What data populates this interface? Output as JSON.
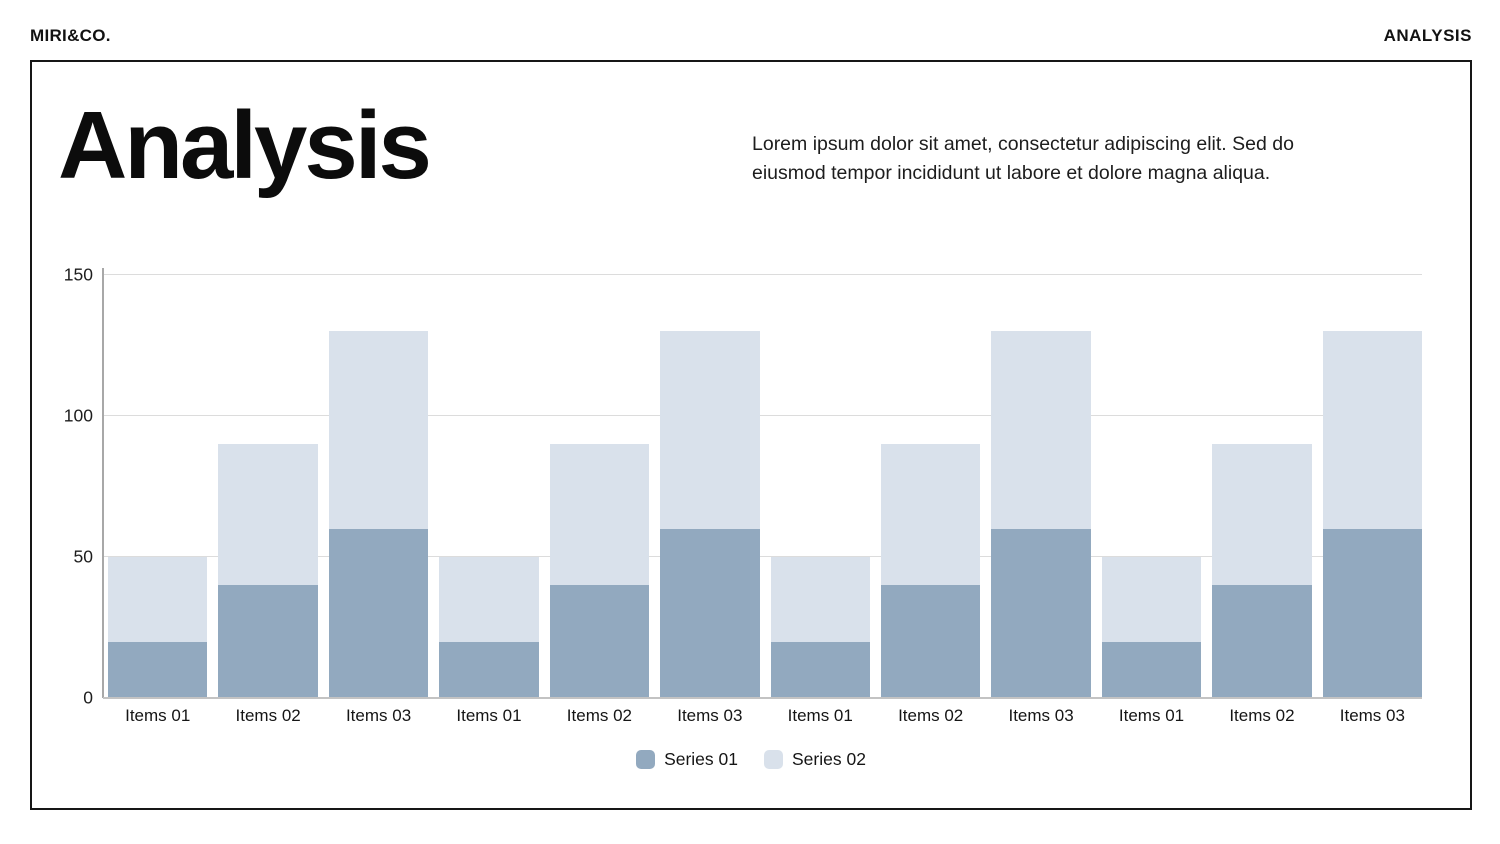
{
  "header": {
    "brand": "MIRI&CO.",
    "page_label": "ANALYSIS"
  },
  "main": {
    "title": "Analysis",
    "intro": "Lorem ipsum dolor sit amet, consectetur adipiscing elit. Sed do eiusmod tempor incididunt ut labore et dolore magna aliqua."
  },
  "colors": {
    "series01": "#92a9bf",
    "series02": "#d9e1eb",
    "gridline": "#dcdcdc",
    "axis_line": "#a8a8a8",
    "baseline": "#c3c3c3",
    "frame_border": "#161616",
    "text": "#111111"
  },
  "chart_data": {
    "type": "bar",
    "mode": "overlay",
    "categories": [
      "Items 01",
      "Items 02",
      "Items 03",
      "Items 01",
      "Items 02",
      "Items 03",
      "Items 01",
      "Items 02",
      "Items 03",
      "Items 01",
      "Items 02",
      "Items 03"
    ],
    "series": [
      {
        "name": "Series 01",
        "color": "#92a9bf",
        "values": [
          20,
          40,
          60,
          20,
          40,
          60,
          20,
          40,
          60,
          20,
          40,
          60
        ]
      },
      {
        "name": "Series 02",
        "color": "#d9e1eb",
        "values": [
          50,
          90,
          130,
          50,
          90,
          130,
          50,
          90,
          130,
          50,
          90,
          130
        ]
      }
    ],
    "title": "",
    "xlabel": "",
    "ylabel": "",
    "ylim": [
      0,
      150
    ],
    "yticks": [
      0,
      50,
      100,
      150
    ],
    "grid": true,
    "legend_position": "bottom"
  }
}
